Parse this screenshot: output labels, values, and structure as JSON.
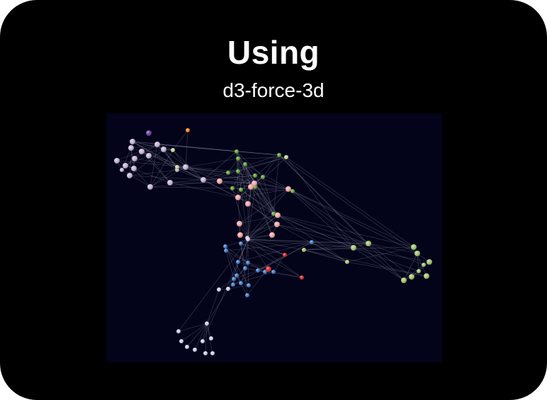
{
  "header": {
    "title": "Using",
    "subtitle": "d3-force-3d"
  },
  "graph": {
    "background_color": "#03031a",
    "link_color": "#a8a8c0",
    "groups": {
      "lavender": "#c4b3d4",
      "purple": "#6a3d9a",
      "orange": "#ff7f0e",
      "yellowgreen": "#c7d98a",
      "green": "#5aa632",
      "olive": "#a3c46c",
      "pink": "#f2a5a5",
      "blue": "#3c7bc4",
      "red": "#d62728",
      "lightblue": "#c9d3e6"
    }
  }
}
